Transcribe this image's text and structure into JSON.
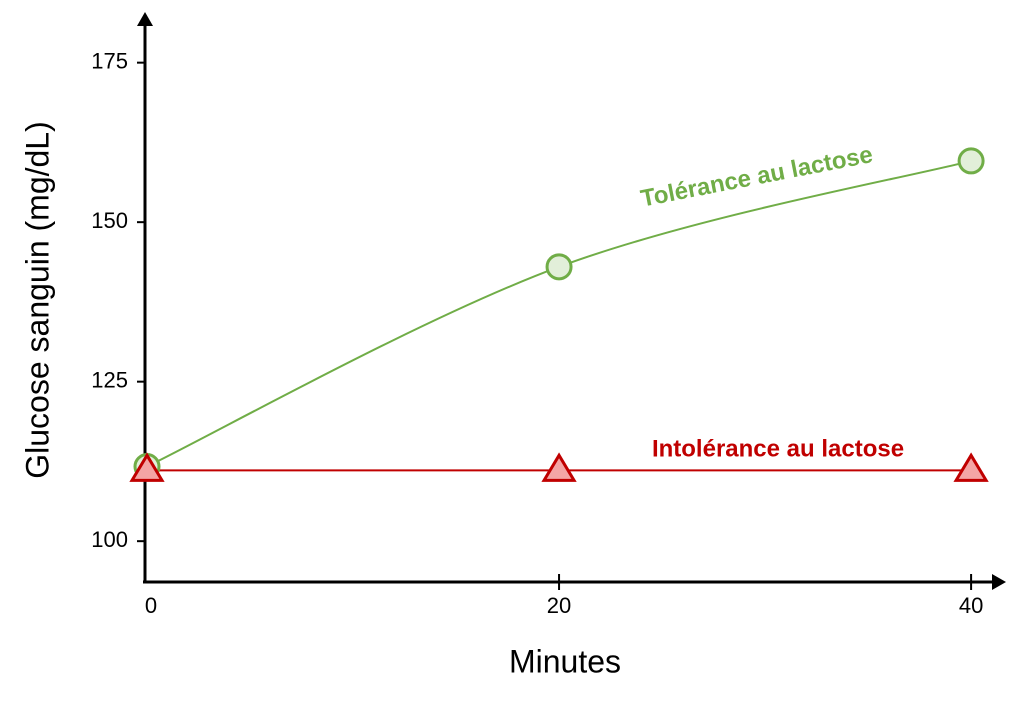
{
  "chart_data": {
    "type": "line",
    "x_label": "Minutes",
    "y_label": "Glucose sanguin (mg/dL)",
    "x": [
      0,
      20,
      40
    ],
    "xlim": [
      0,
      41.5
    ],
    "xticks": [
      0,
      20,
      40
    ],
    "ylim": [
      93.6,
      182
    ],
    "yticks": [
      100,
      125,
      150,
      175
    ],
    "series": [
      {
        "name": "Tolérance au lactose",
        "color": "#70ad47",
        "fill": "#e2efd9",
        "marker": "circle",
        "values": [
          111.7,
          143.0,
          159.6
        ]
      },
      {
        "name": "Intolérance au lactose",
        "color": "#c00000",
        "fill": "#f4a5a5",
        "marker": "triangle",
        "values": [
          111.1,
          111.1,
          111.1
        ]
      }
    ]
  }
}
